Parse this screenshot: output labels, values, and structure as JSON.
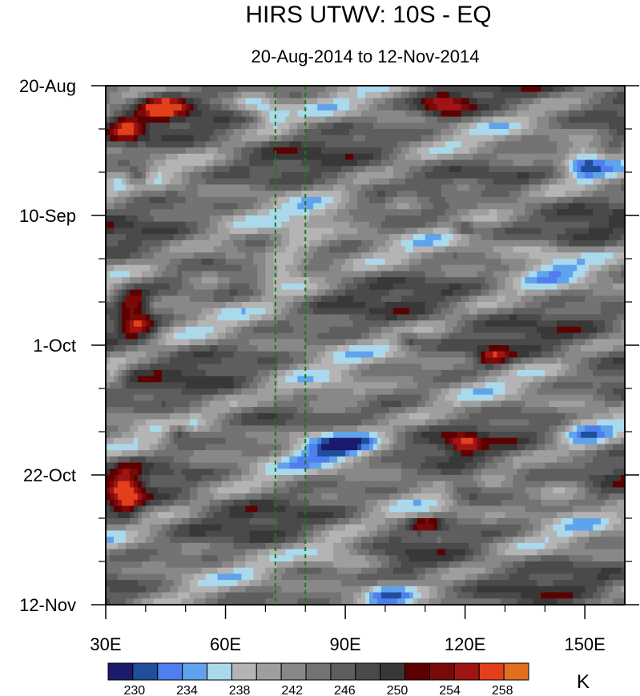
{
  "chart_data": {
    "type": "heatmap",
    "title": "HIRS UTWV: 10S - EQ",
    "subtitle": "20-Aug-2014 to 12-Nov-2014",
    "x_range": [
      30,
      160
    ],
    "x_ticks": [
      30,
      60,
      90,
      120,
      150
    ],
    "x_tick_labels": [
      "30E",
      "60E",
      "90E",
      "120E",
      "150E"
    ],
    "y_range_days": [
      0,
      84
    ],
    "y_ticks": [
      0,
      21,
      42,
      63,
      84
    ],
    "y_tick_labels": [
      "20-Aug",
      "10-Sep",
      "1-Oct",
      "22-Oct",
      "12-Nov"
    ],
    "reference_lines_lon": [
      72.5,
      80
    ],
    "reference_line_color": "#1a7a1a",
    "colorbar": {
      "levels": [
        228,
        230,
        232,
        234,
        236,
        238,
        240,
        242,
        244,
        246,
        248,
        250,
        252,
        254,
        256,
        258,
        260
      ],
      "labels": [
        "230",
        "234",
        "238",
        "242",
        "246",
        "250",
        "254",
        "258"
      ],
      "label_values": [
        230,
        234,
        238,
        242,
        246,
        250,
        254,
        258
      ],
      "colors": [
        "#1a1a6e",
        "#1f4e9a",
        "#4f7ef0",
        "#5fa3ec",
        "#abd9ec",
        "#b4b4b4",
        "#9e9e9e",
        "#888888",
        "#737373",
        "#5e5e5e",
        "#4a4a4a",
        "#383838",
        "#5c0000",
        "#7a0a0a",
        "#a01414",
        "#e2401a",
        "#e07020"
      ],
      "unit": "K"
    },
    "field_description_features": [
      {
        "lon": 72,
        "day": 30,
        "value": 232
      },
      {
        "lon": 90,
        "day": 58,
        "value": 232
      },
      {
        "lon": 37,
        "day": 39,
        "value": 258
      },
      {
        "lon": 44,
        "day": 2,
        "value": 258
      },
      {
        "lon": 115,
        "day": 3,
        "value": 256
      }
    ]
  }
}
